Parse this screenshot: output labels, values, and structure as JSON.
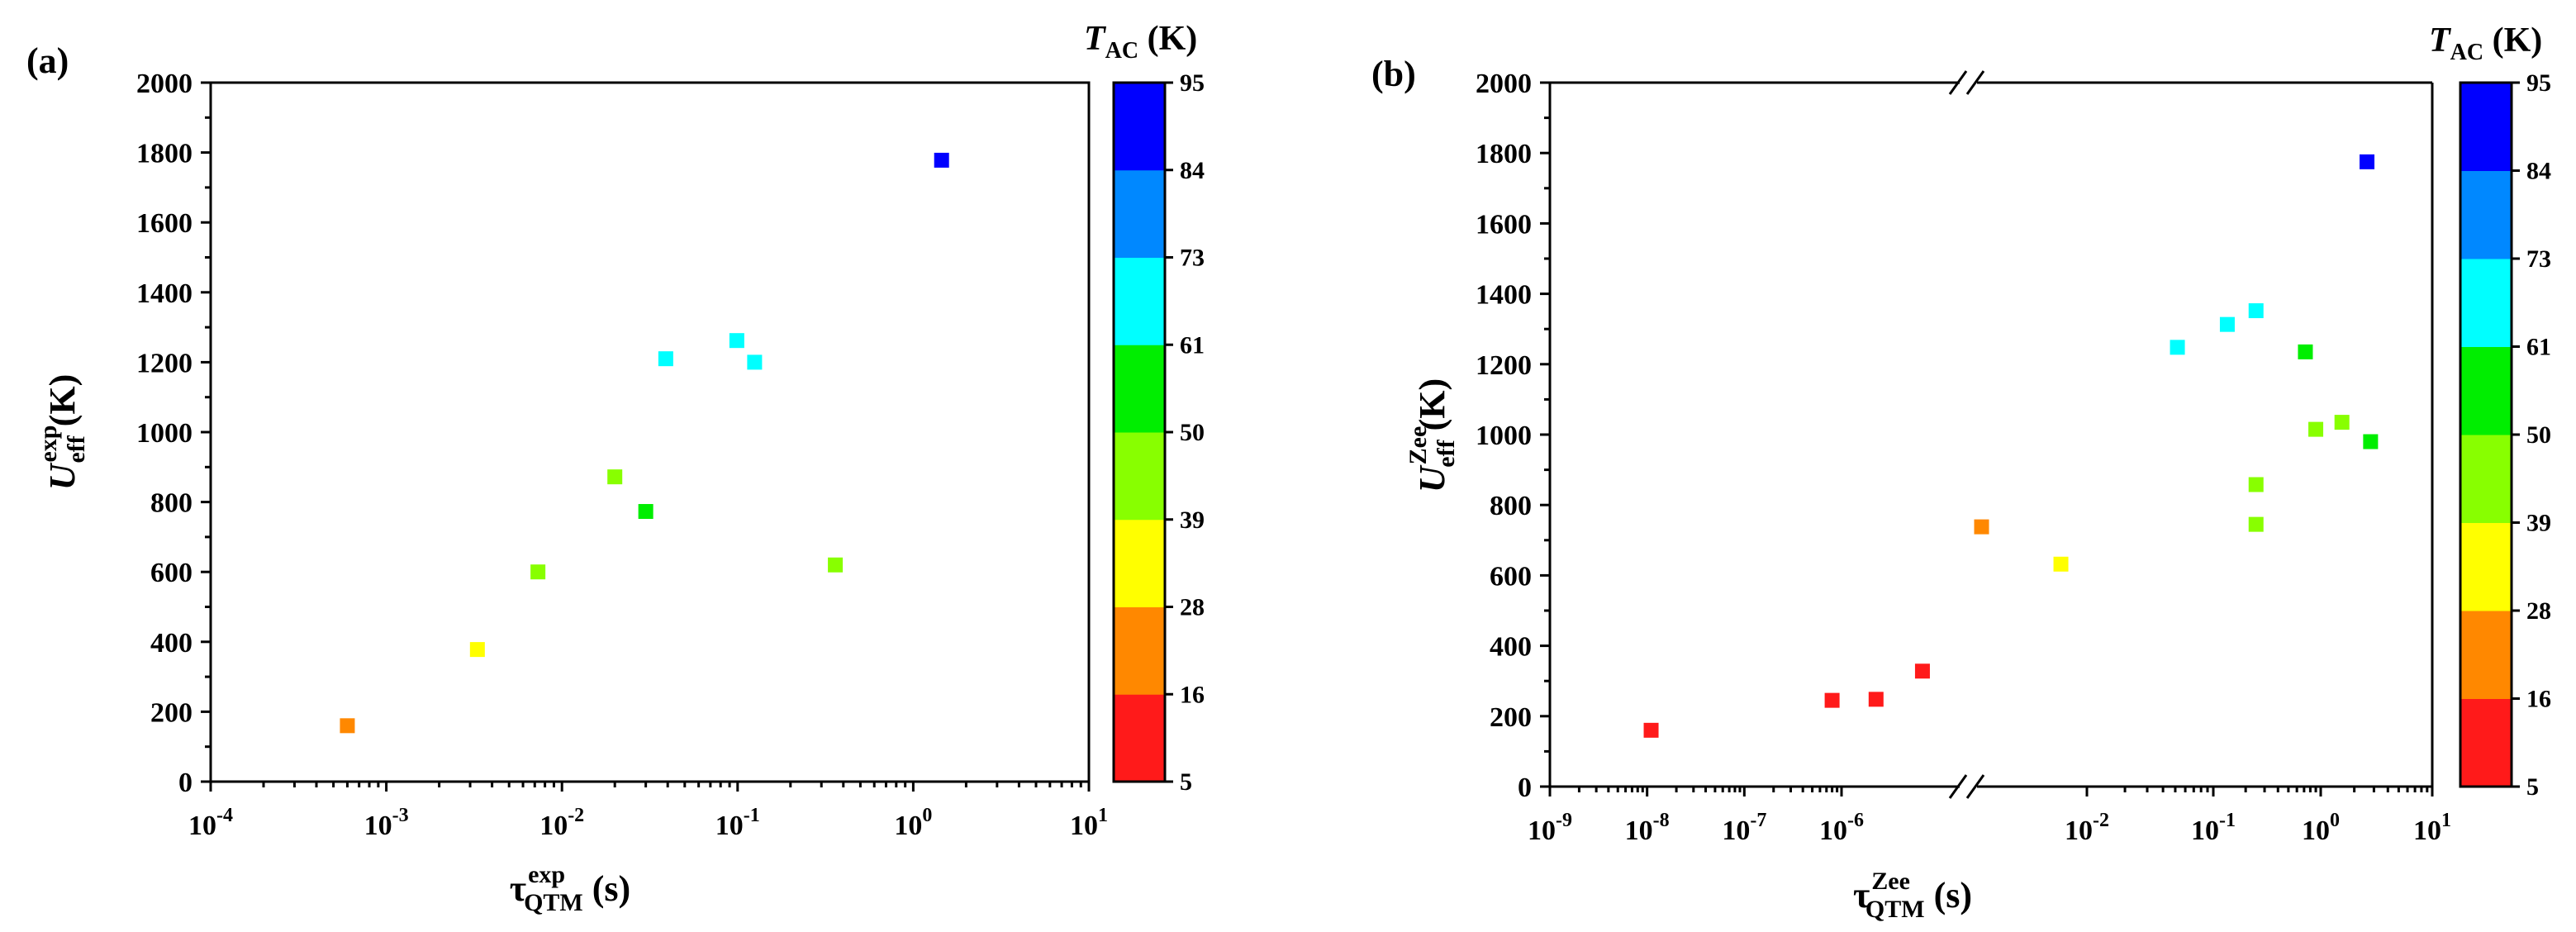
{
  "colorbar": {
    "title_symbol": "T",
    "title_subscript": "AC",
    "title_unit": " (K)",
    "ticks": [
      "5",
      "16",
      "28",
      "39",
      "50",
      "61",
      "73",
      "84",
      "95"
    ],
    "colors": [
      "#ff1a1a",
      "#ff8800",
      "#ffff00",
      "#88ff00",
      "#00ee00",
      "#00ffff",
      "#0088ff",
      "#0000ff"
    ]
  },
  "chart_data": [
    {
      "type": "scatter",
      "panel_label": "(a)",
      "xlabel": {
        "base": "τ",
        "sub": "QTM",
        "sup": "exp",
        "unit": " (s)"
      },
      "ylabel": {
        "base": "U",
        "sub": "eff",
        "sup": "exp",
        "unit": " (K)"
      },
      "xscale": "log",
      "xlim_exponent": [
        -4,
        1
      ],
      "ylim": [
        0,
        2000
      ],
      "y_ticks": [
        "0",
        "200",
        "400",
        "600",
        "800",
        "1000",
        "1200",
        "1400",
        "1600",
        "1800",
        "2000"
      ],
      "x_ticks": [
        {
          "base": "10",
          "exp": "-4",
          "value": -4
        },
        {
          "base": "10",
          "exp": "-3",
          "value": -3
        },
        {
          "base": "10",
          "exp": "-2",
          "value": -2
        },
        {
          "base": "10",
          "exp": "-1",
          "value": -1
        },
        {
          "base": "10",
          "exp": "0",
          "value": 0
        },
        {
          "base": "10",
          "exp": "1",
          "value": 1
        }
      ],
      "points": [
        {
          "x": 0.0006,
          "y": 160,
          "color": "#ff8800"
        },
        {
          "x": 0.0033,
          "y": 378,
          "color": "#ffff00"
        },
        {
          "x": 0.0073,
          "y": 600,
          "color": "#88ff00"
        },
        {
          "x": 0.02,
          "y": 872,
          "color": "#88ff00"
        },
        {
          "x": 0.03,
          "y": 773,
          "color": "#00ee00"
        },
        {
          "x": 0.039,
          "y": 1210,
          "color": "#00ffff"
        },
        {
          "x": 0.099,
          "y": 1262,
          "color": "#00ffff"
        },
        {
          "x": 0.125,
          "y": 1200,
          "color": "#00ffff"
        },
        {
          "x": 0.36,
          "y": 620,
          "color": "#88ff00"
        },
        {
          "x": 1.45,
          "y": 1778,
          "color": "#0000ff"
        }
      ]
    },
    {
      "type": "scatter",
      "panel_label": "(b)",
      "xlabel": {
        "base": "τ",
        "sub": "QTM",
        "sup": "Zee",
        "unit": " (s)"
      },
      "ylabel": {
        "base": "U",
        "sub": "eff",
        "sup": "Zee",
        "unit": " (K)"
      },
      "xscale": "log-broken",
      "axis_break": "10^-5.5 to 10^-3",
      "ylim": [
        0,
        2000
      ],
      "y_ticks": [
        "0",
        "200",
        "400",
        "600",
        "800",
        "1000",
        "1200",
        "1400",
        "1600",
        "1800",
        "2000"
      ],
      "x_ticks": [
        {
          "base": "10",
          "exp": "-9",
          "value": -9
        },
        {
          "base": "10",
          "exp": "-8",
          "value": -8
        },
        {
          "base": "10",
          "exp": "-7",
          "value": -7
        },
        {
          "base": "10",
          "exp": "-6",
          "value": -6
        },
        {
          "base": "10",
          "exp": "-2",
          "value": -2
        },
        {
          "base": "10",
          "exp": "-1",
          "value": -1
        },
        {
          "base": "10",
          "exp": "0",
          "value": 0
        },
        {
          "base": "10",
          "exp": "1",
          "value": 1
        }
      ],
      "points": [
        {
          "x": 1.1e-08,
          "y": 160,
          "color": "#ff1a1a"
        },
        {
          "x": 8e-07,
          "y": 245,
          "color": "#ff1a1a"
        },
        {
          "x": 1.4e-06,
          "y": 248,
          "color": "#ff1a1a"
        },
        {
          "x": 2.2e-06,
          "y": 328,
          "color": "#ff1a1a"
        },
        {
          "x": 0.0011,
          "y": 738,
          "color": "#ff8800"
        },
        {
          "x": 0.0058,
          "y": 632,
          "color": "#ffff00"
        },
        {
          "x": 0.052,
          "y": 1248,
          "color": "#00ffff"
        },
        {
          "x": 0.135,
          "y": 1313,
          "color": "#00ffff"
        },
        {
          "x": 0.25,
          "y": 1352,
          "color": "#00ffff"
        },
        {
          "x": 0.25,
          "y": 858,
          "color": "#88ff00"
        },
        {
          "x": 0.25,
          "y": 745,
          "color": "#88ff00"
        },
        {
          "x": 0.72,
          "y": 1235,
          "color": "#00ee00"
        },
        {
          "x": 0.9,
          "y": 1015,
          "color": "#88ff00"
        },
        {
          "x": 1.55,
          "y": 1035,
          "color": "#88ff00"
        },
        {
          "x": 2.6,
          "y": 1775,
          "color": "#0000ff"
        },
        {
          "x": 2.8,
          "y": 980,
          "color": "#00ee00"
        }
      ]
    }
  ]
}
